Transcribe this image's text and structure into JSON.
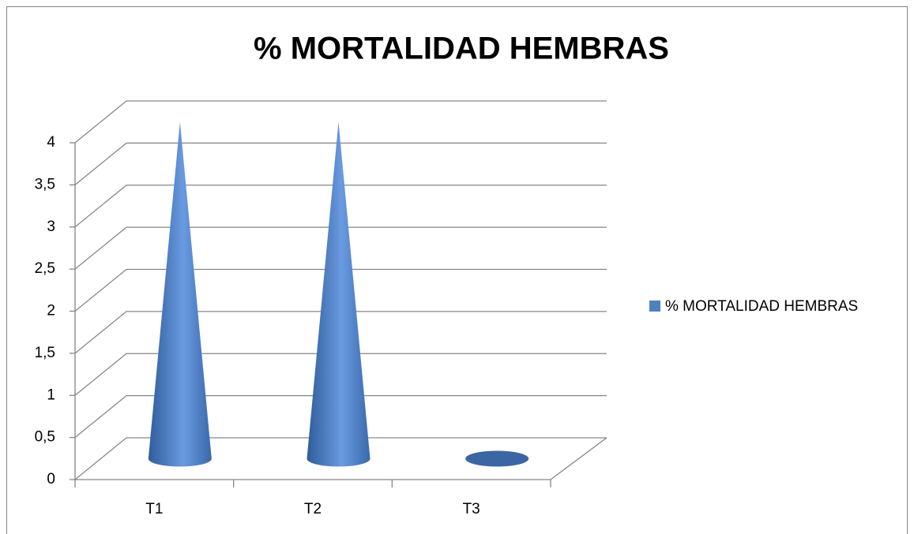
{
  "chart_data": {
    "type": "cone3d",
    "title": "% MORTALIDAD HEMBRAS",
    "categories": [
      "T1",
      "T2",
      "T3"
    ],
    "series": [
      {
        "name": "% MORTALIDAD HEMBRAS",
        "color": "#4f81bd",
        "values": [
          4,
          4,
          0
        ]
      }
    ],
    "ylim": [
      0,
      4
    ],
    "yticks": [
      0,
      {
        "value": 0.5,
        "label": "0,5"
      },
      1,
      {
        "value": 1.5,
        "label": "1,5"
      },
      2,
      {
        "value": 2.5,
        "label": "2,5"
      },
      3,
      {
        "value": 3.5,
        "label": "3,5"
      },
      4
    ],
    "grid": true,
    "legend": "right"
  }
}
